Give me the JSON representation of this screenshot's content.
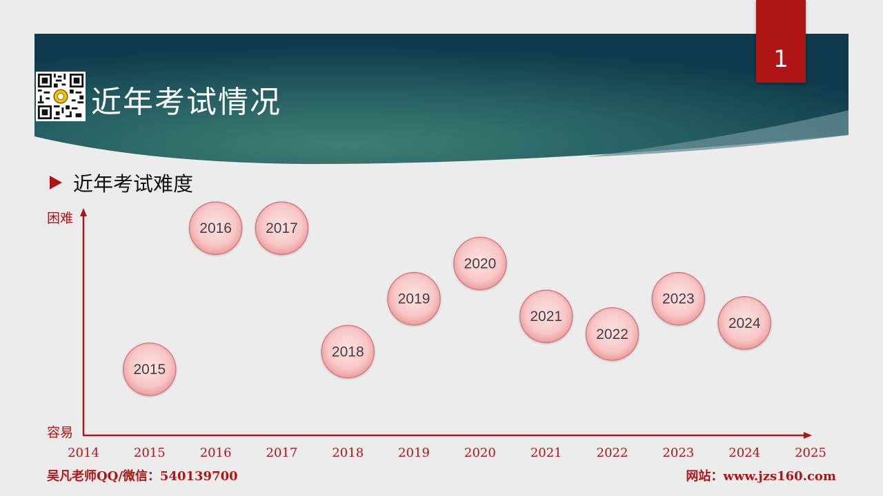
{
  "slide": {
    "page_number": "1",
    "title": "近年考试情况",
    "subtitle": "近年考试难度"
  },
  "colors": {
    "accent_red": "#b01515",
    "banner_dark": "#0f3a4c",
    "banner_mid": "#3b7a6e",
    "bubble_fill": "#f8c6c6",
    "bubble_stroke": "#d87a7a"
  },
  "icons": {
    "qr": "qr-code-icon",
    "bullet": "triangle-bullet-icon"
  },
  "axis": {
    "y_top_label": "困难",
    "y_bottom_label": "容易"
  },
  "chart_data": {
    "type": "scatter",
    "title": "",
    "xlabel": "",
    "ylabel": "",
    "xlim": [
      2014,
      2025
    ],
    "x_ticks": [
      "2014",
      "2015",
      "2016",
      "2017",
      "2018",
      "2019",
      "2020",
      "2021",
      "2022",
      "2023",
      "2024",
      "2025"
    ],
    "points": [
      {
        "label": "2015",
        "x": 2015,
        "y": 30
      },
      {
        "label": "2016",
        "x": 2016,
        "y": 94
      },
      {
        "label": "2017",
        "x": 2017,
        "y": 94
      },
      {
        "label": "2018",
        "x": 2018,
        "y": 38
      },
      {
        "label": "2019",
        "x": 2019,
        "y": 62
      },
      {
        "label": "2020",
        "x": 2020,
        "y": 78
      },
      {
        "label": "2021",
        "x": 2021,
        "y": 54
      },
      {
        "label": "2022",
        "x": 2022,
        "y": 46
      },
      {
        "label": "2023",
        "x": 2023,
        "y": 62
      },
      {
        "label": "2024",
        "x": 2024,
        "y": 51
      }
    ]
  },
  "footer": {
    "left": "吴凡老师QQ/微信：540139700",
    "right": "网站：www.jzs160.com"
  }
}
